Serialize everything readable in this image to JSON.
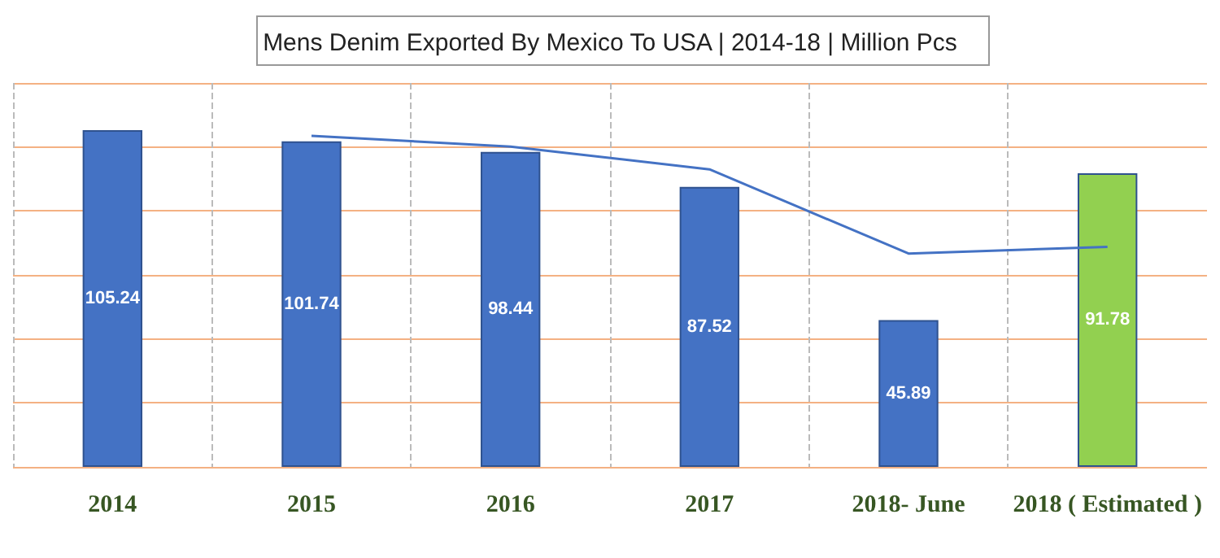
{
  "chart_data": {
    "type": "bar",
    "title": "Mens Denim Exported By Mexico To USA | 2014-18 | Million Pcs",
    "categories": [
      "2014",
      "2015",
      "2016",
      "2017",
      "2018- June",
      "2018 ( Estimated )"
    ],
    "series": [
      {
        "colors": [
          "#4472c4",
          "#4472c4",
          "#4472c4",
          "#4472c4",
          "#4472c4",
          "#92d050"
        ],
        "values": [
          105.24,
          101.74,
          98.44,
          87.52,
          45.89,
          91.78
        ],
        "value_labels": [
          "105.24",
          "101.74",
          "98.44",
          "87.52",
          "45.89",
          "91.78"
        ]
      },
      {
        "type": "line",
        "color": "#4472c4",
        "values": [
          null,
          103.5,
          100.1,
          93.0,
          66.7,
          68.8
        ]
      }
    ],
    "ylim": [
      0,
      120
    ],
    "yticks": [
      0,
      20,
      40,
      60,
      80,
      100,
      120
    ],
    "tick_labels": "x",
    "grid": true,
    "marker": "none"
  }
}
